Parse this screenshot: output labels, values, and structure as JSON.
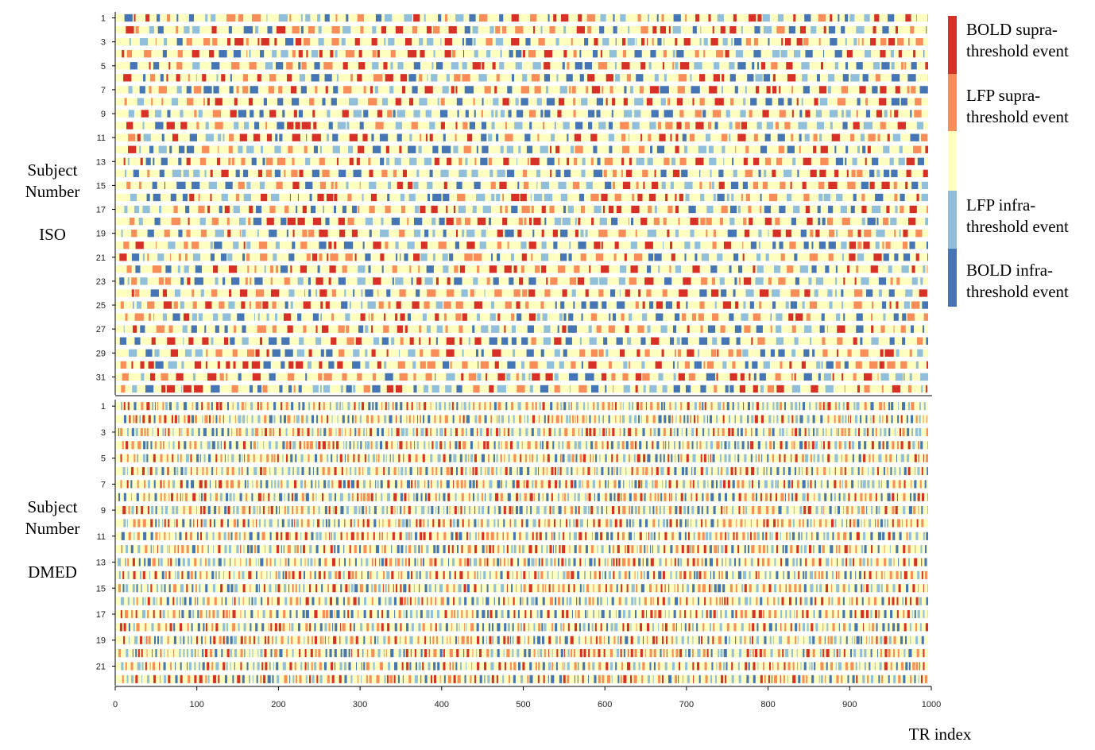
{
  "chart_data": {
    "type": "heatmap",
    "x_axis": {
      "label": "TR index",
      "range": [
        0,
        1000
      ],
      "ticks": [
        0,
        100,
        200,
        300,
        400,
        500,
        600,
        700,
        800,
        900,
        1000
      ]
    },
    "legend": {
      "placement": "right",
      "entries": [
        {
          "label_line1": "BOLD supra-",
          "label_line2": "threshold event",
          "color": "#d73027",
          "code": 2
        },
        {
          "label_line1": "LFP supra-",
          "label_line2": "threshold event",
          "color": "#f88d59",
          "code": 1
        },
        {
          "label_line1": "",
          "label_line2": "",
          "color": "#ffffbf",
          "code": 0
        },
        {
          "label_line1": "LFP infra-",
          "label_line2": "threshold event",
          "color": "#91bfdb",
          "code": -1
        },
        {
          "label_line1": "BOLD infra-",
          "label_line2": "threshold event",
          "color": "#4575b4",
          "code": -2
        }
      ]
    },
    "panels": [
      {
        "name_line1": "Subject",
        "name_line2": "Number",
        "group": "ISO",
        "subjects": 32,
        "y_ticks": [
          "1",
          "3",
          "5",
          "7",
          "9",
          "11",
          "13",
          "15",
          "17",
          "19",
          "21",
          "23",
          "25",
          "27",
          "29",
          "31"
        ],
        "event_density": 0.5,
        "mean_event_length": 7
      },
      {
        "name_line1": "Subject",
        "name_line2": "Number",
        "group": "DMED",
        "subjects": 22,
        "y_ticks": [
          "1",
          "3",
          "5",
          "7",
          "9",
          "11",
          "13",
          "15",
          "17",
          "19",
          "21"
        ],
        "event_density": 0.55,
        "mean_event_length": 3
      }
    ]
  }
}
